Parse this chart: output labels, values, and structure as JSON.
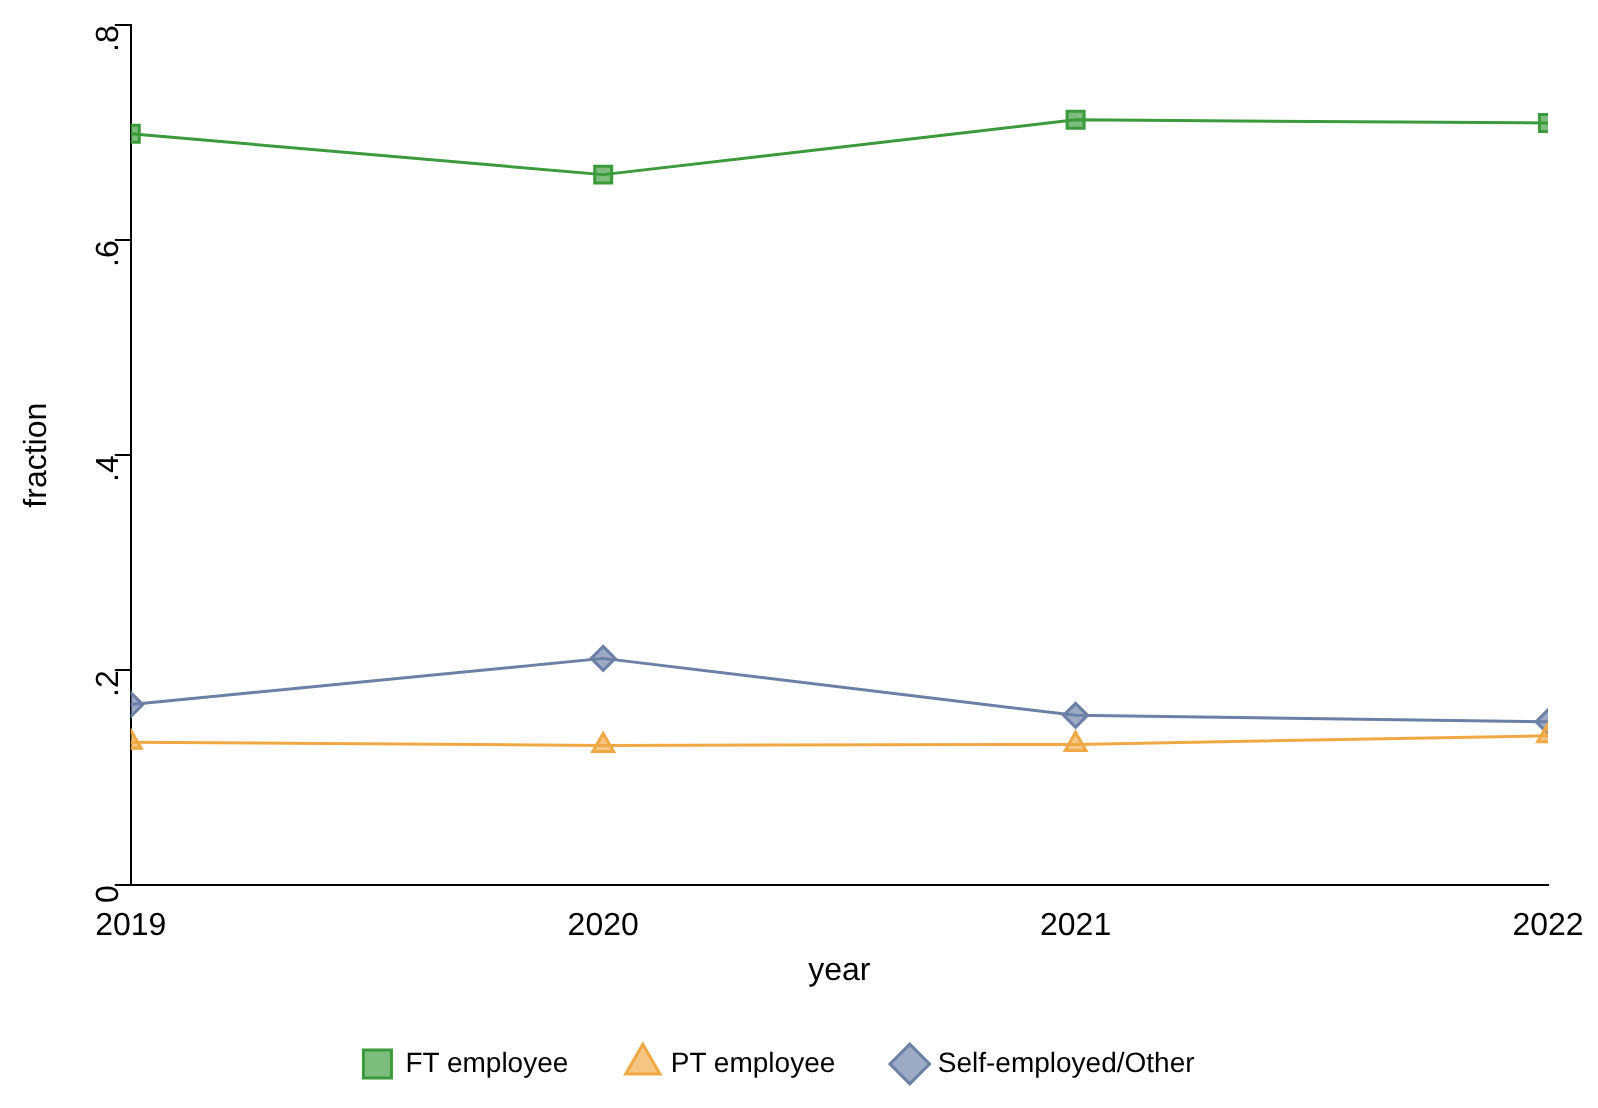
{
  "chart_data": {
    "type": "line",
    "xlabel": "year",
    "ylabel": "fraction",
    "x": [
      2019,
      2020,
      2021,
      2022
    ],
    "xlim": [
      2019,
      2022
    ],
    "xticks": [
      2019,
      2020,
      2021,
      2022
    ],
    "ylim": [
      0,
      0.8
    ],
    "yticks": [
      {
        "value": 0,
        "label": "0"
      },
      {
        "value": 0.2,
        "label": ".2"
      },
      {
        "value": 0.4,
        "label": ".4"
      },
      {
        "value": 0.6,
        "label": ".6"
      },
      {
        "value": 0.8,
        "label": ".8"
      }
    ],
    "grid": false,
    "legend": "bottom",
    "series": [
      {
        "name": "FT employee",
        "color": "#3b9a3b",
        "marker": "square",
        "values": [
          0.699,
          0.661,
          0.712,
          0.709
        ]
      },
      {
        "name": "PT employee",
        "color": "#f0a845",
        "marker": "triangle",
        "values": [
          0.133,
          0.13,
          0.131,
          0.139
        ]
      },
      {
        "name": "Self-employed/Other",
        "color": "#6c7fa6",
        "marker": "diamond",
        "values": [
          0.168,
          0.211,
          0.158,
          0.152
        ]
      }
    ]
  }
}
